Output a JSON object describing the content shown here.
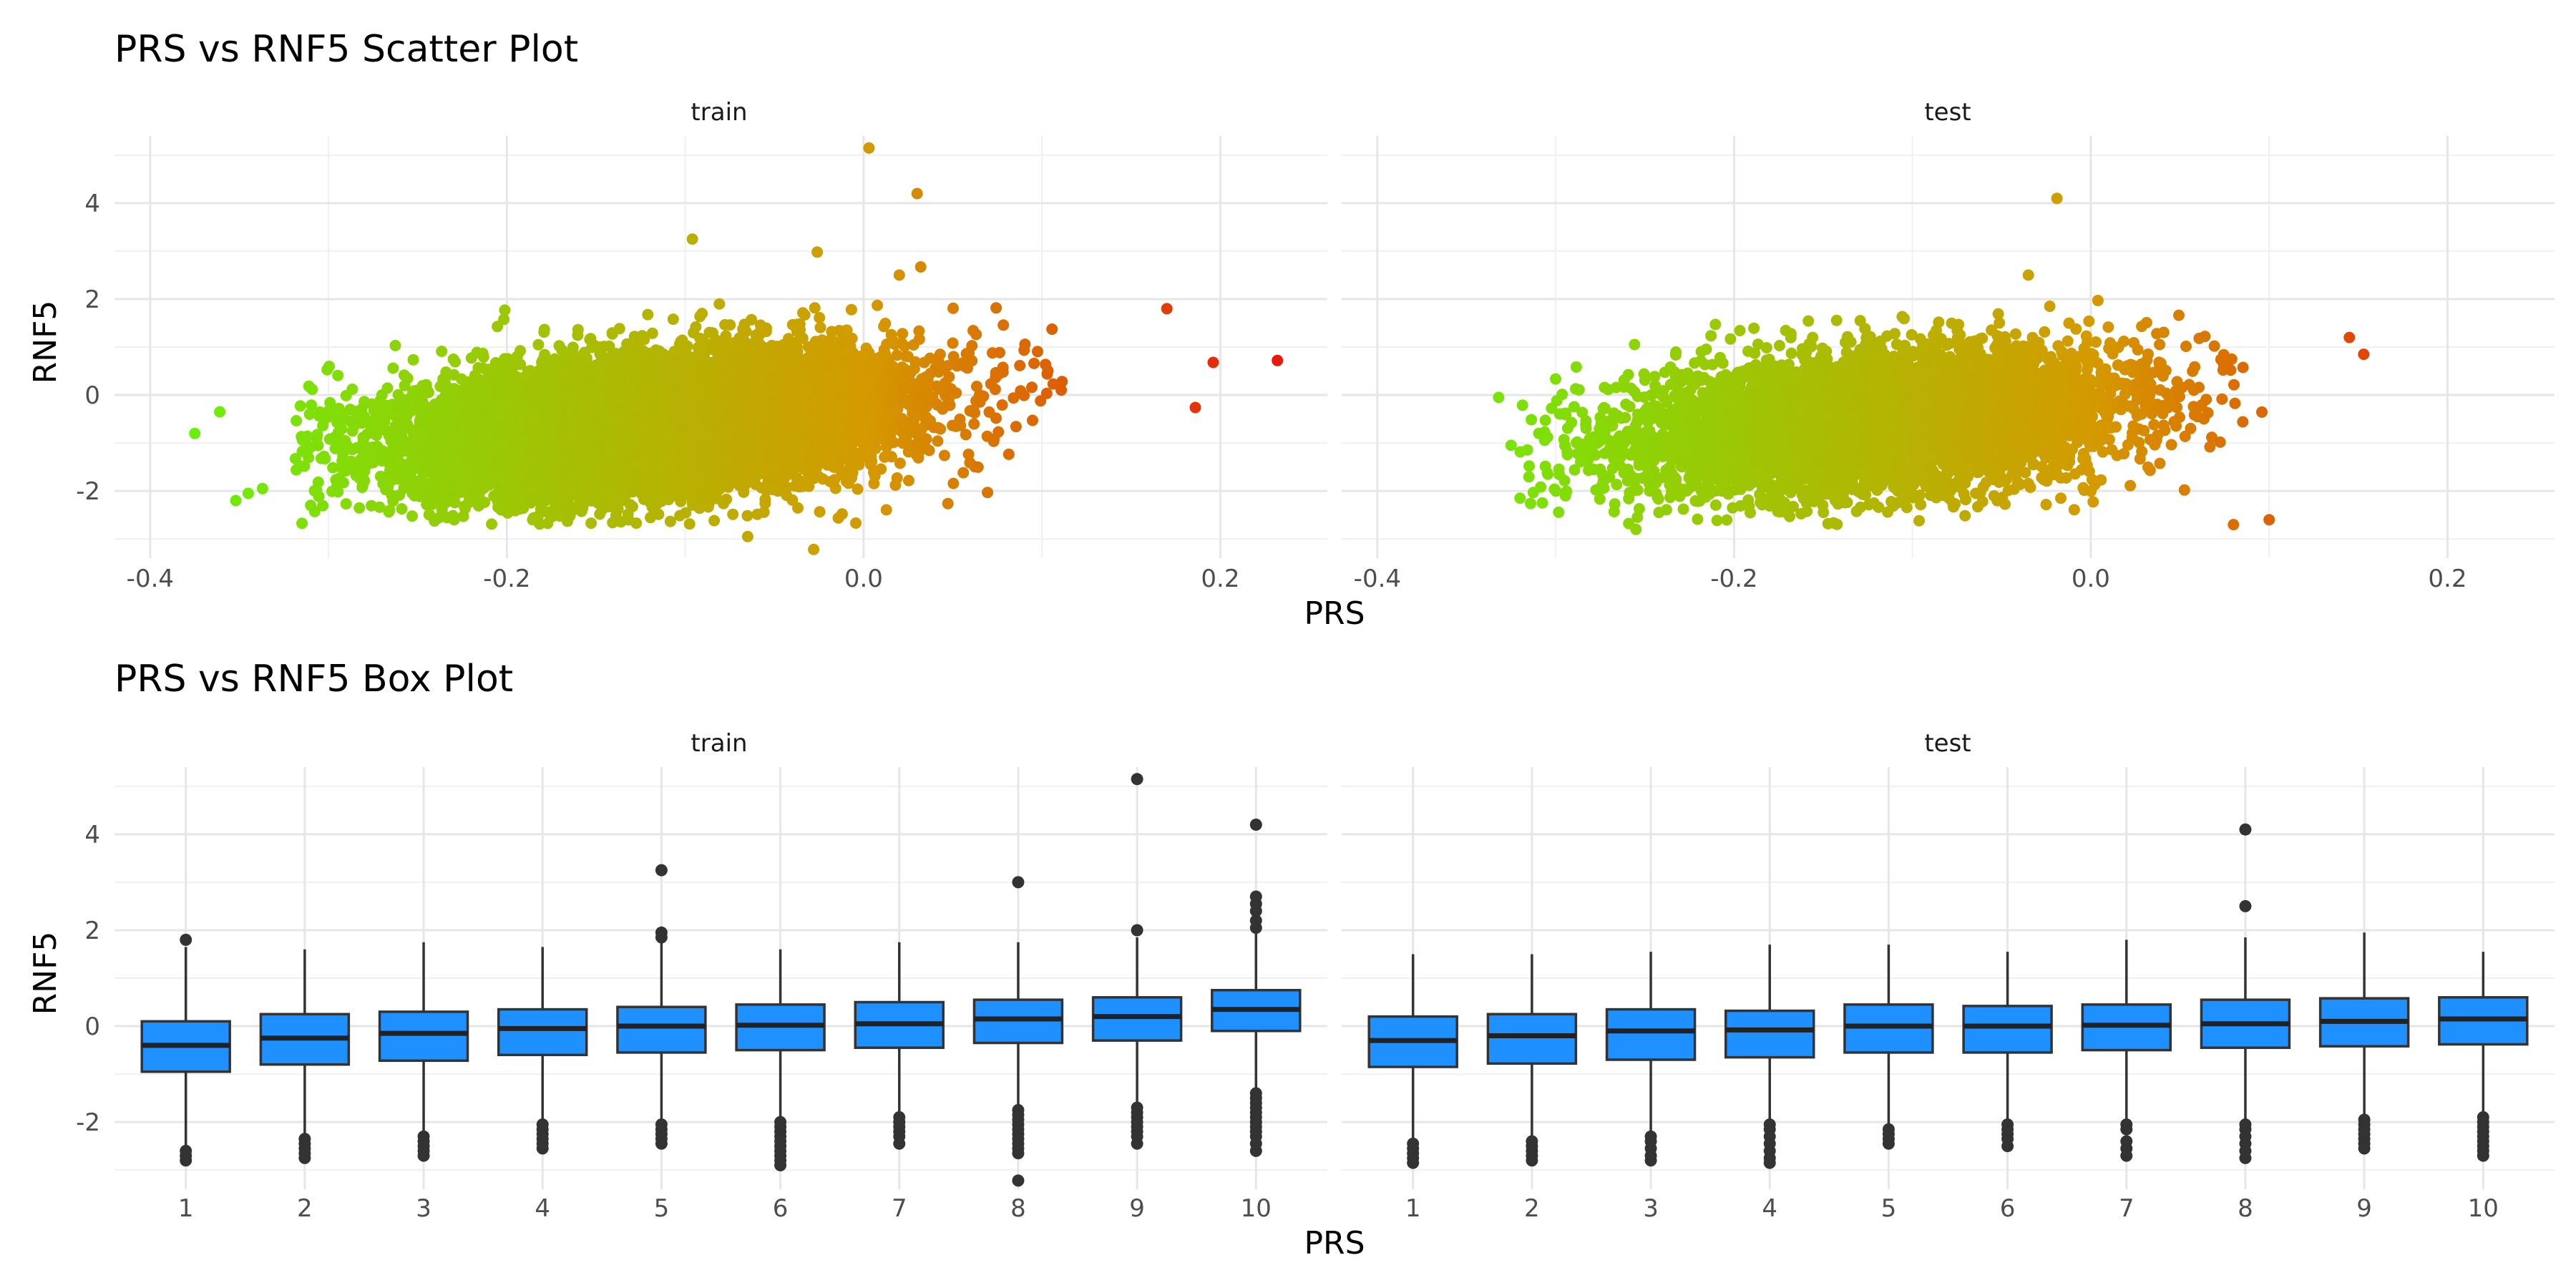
{
  "chart_data": [
    {
      "type": "scatter",
      "title": "PRS vs RNF5 Scatter Plot",
      "xlabel": "PRS",
      "ylabel": "RNF5",
      "xlim": [
        -0.42,
        0.26
      ],
      "ylim": [
        -3.4,
        5.4
      ],
      "x_ticks": [
        -0.4,
        -0.2,
        0.0,
        0.2
      ],
      "x_tick_labels": [
        "-0.4",
        "-0.2",
        "0.0",
        "0.2"
      ],
      "y_ticks": [
        -2,
        0,
        2,
        4
      ],
      "y_tick_labels": [
        "-2",
        "0",
        "2",
        "4"
      ],
      "grid": true,
      "color_scale": {
        "low": "#6BEF0A",
        "mid": "#D49A00",
        "high": "#E8180A"
      },
      "panels": [
        {
          "name": "train",
          "cloud": {
            "x_range": [
              -0.3,
              0.12
            ],
            "y_range": [
              -2.7,
              1.9
            ],
            "n_points": 9000
          },
          "outliers": [
            {
              "x": 0.003,
              "y": 5.15
            },
            {
              "x": 0.03,
              "y": 4.2
            },
            {
              "x": -0.096,
              "y": 3.25
            },
            {
              "x": -0.026,
              "y": 2.98
            },
            {
              "x": 0.032,
              "y": 2.67
            },
            {
              "x": 0.02,
              "y": 2.5
            },
            {
              "x": 0.232,
              "y": 0.72
            },
            {
              "x": 0.196,
              "y": 0.68
            },
            {
              "x": 0.186,
              "y": -0.26
            },
            {
              "x": 0.17,
              "y": 1.8
            },
            {
              "x": -0.375,
              "y": -0.8
            },
            {
              "x": -0.352,
              "y": -2.2
            },
            {
              "x": -0.345,
              "y": -2.05
            },
            {
              "x": -0.337,
              "y": -1.95
            },
            {
              "x": -0.361,
              "y": -0.35
            },
            {
              "x": -0.31,
              "y": -2.3
            },
            {
              "x": -0.028,
              "y": -3.22
            },
            {
              "x": -0.065,
              "y": -2.95
            }
          ]
        },
        {
          "name": "test",
          "cloud": {
            "x_range": [
              -0.3,
              0.12
            ],
            "y_range": [
              -2.7,
              1.7
            ],
            "n_points": 5500
          },
          "outliers": [
            {
              "x": -0.019,
              "y": 4.1
            },
            {
              "x": -0.035,
              "y": 2.5
            },
            {
              "x": -0.023,
              "y": 1.85
            },
            {
              "x": 0.004,
              "y": 1.97
            },
            {
              "x": -0.332,
              "y": -0.05
            },
            {
              "x": -0.32,
              "y": -2.15
            },
            {
              "x": -0.325,
              "y": -1.05
            },
            {
              "x": 0.153,
              "y": 0.85
            },
            {
              "x": 0.145,
              "y": 1.2
            },
            {
              "x": 0.1,
              "y": -2.6
            },
            {
              "x": 0.08,
              "y": -2.7
            },
            {
              "x": -0.255,
              "y": -2.8
            }
          ]
        }
      ]
    },
    {
      "type": "box",
      "title": "PRS vs RNF5 Box Plot",
      "xlabel": "PRS",
      "ylabel": "RNF5",
      "categories": [
        "1",
        "2",
        "3",
        "4",
        "5",
        "6",
        "7",
        "8",
        "9",
        "10"
      ],
      "ylim": [
        -3.4,
        5.4
      ],
      "y_ticks": [
        -2,
        0,
        2,
        4
      ],
      "y_tick_labels": [
        "-2",
        "0",
        "2",
        "4"
      ],
      "fill": "#1E90FF",
      "grid": true,
      "panels": [
        {
          "name": "train",
          "boxes": [
            {
              "q1": -0.95,
              "median": -0.4,
              "q3": 0.1,
              "low": -2.55,
              "high": 1.65,
              "outliers": [
                1.8,
                -2.6,
                -2.7,
                -2.8
              ]
            },
            {
              "q1": -0.8,
              "median": -0.25,
              "q3": 0.25,
              "low": -2.25,
              "high": 1.6,
              "outliers": [
                -2.35,
                -2.45,
                -2.55,
                -2.65,
                -2.75
              ]
            },
            {
              "q1": -0.72,
              "median": -0.15,
              "q3": 0.3,
              "low": -2.2,
              "high": 1.75,
              "outliers": [
                -2.3,
                -2.4,
                -2.5,
                -2.6,
                -2.7
              ]
            },
            {
              "q1": -0.6,
              "median": -0.05,
              "q3": 0.35,
              "low": -1.95,
              "high": 1.65,
              "outliers": [
                -2.05,
                -2.15,
                -2.25,
                -2.35,
                -2.45,
                -2.55
              ]
            },
            {
              "q1": -0.55,
              "median": 0.0,
              "q3": 0.4,
              "low": -1.95,
              "high": 1.75,
              "outliers": [
                3.25,
                1.85,
                1.95,
                -2.05,
                -2.15,
                -2.25,
                -2.35,
                -2.45
              ]
            },
            {
              "q1": -0.5,
              "median": 0.02,
              "q3": 0.45,
              "low": -1.9,
              "high": 1.6,
              "outliers": [
                -2.0,
                -2.1,
                -2.2,
                -2.3,
                -2.4,
                -2.5,
                -2.6,
                -2.7,
                -2.8,
                -2.9
              ]
            },
            {
              "q1": -0.45,
              "median": 0.05,
              "q3": 0.5,
              "low": -1.8,
              "high": 1.75,
              "outliers": [
                -1.9,
                -2.0,
                -2.1,
                -2.2,
                -2.3,
                -2.45
              ]
            },
            {
              "q1": -0.35,
              "median": 0.15,
              "q3": 0.55,
              "low": -1.65,
              "high": 1.75,
              "outliers": [
                3.0,
                -1.75,
                -1.85,
                -1.95,
                -2.05,
                -2.15,
                -2.25,
                -2.35,
                -2.45,
                -2.55,
                -2.65,
                -3.22
              ]
            },
            {
              "q1": -0.3,
              "median": 0.2,
              "q3": 0.6,
              "low": -1.6,
              "high": 1.85,
              "outliers": [
                5.15,
                2.0,
                -1.7,
                -1.8,
                -1.9,
                -2.0,
                -2.1,
                -2.2,
                -2.3,
                -2.45
              ]
            },
            {
              "q1": -0.1,
              "median": 0.35,
              "q3": 0.75,
              "low": -1.3,
              "high": 1.95,
              "outliers": [
                4.2,
                2.7,
                2.55,
                2.4,
                2.2,
                2.05,
                -1.4,
                -1.5,
                -1.6,
                -1.7,
                -1.8,
                -1.9,
                -2.0,
                -2.1,
                -2.2,
                -2.3,
                -2.45,
                -2.6
              ]
            }
          ]
        },
        {
          "name": "test",
          "boxes": [
            {
              "q1": -0.85,
              "median": -0.3,
              "q3": 0.2,
              "low": -2.35,
              "high": 1.5,
              "outliers": [
                -2.45,
                -2.55,
                -2.65,
                -2.75,
                -2.85
              ]
            },
            {
              "q1": -0.78,
              "median": -0.2,
              "q3": 0.25,
              "low": -2.3,
              "high": 1.5,
              "outliers": [
                -2.4,
                -2.5,
                -2.6,
                -2.7,
                -2.8
              ]
            },
            {
              "q1": -0.7,
              "median": -0.1,
              "q3": 0.35,
              "low": -2.2,
              "high": 1.55,
              "outliers": [
                -2.3,
                -2.4,
                -2.55,
                -2.7,
                -2.8
              ]
            },
            {
              "q1": -0.65,
              "median": -0.08,
              "q3": 0.32,
              "low": -1.95,
              "high": 1.7,
              "outliers": [
                -2.05,
                -2.15,
                -2.3,
                -2.45,
                -2.6,
                -2.75,
                -2.85
              ]
            },
            {
              "q1": -0.55,
              "median": 0.0,
              "q3": 0.45,
              "low": -2.05,
              "high": 1.7,
              "outliers": [
                -2.15,
                -2.25,
                -2.35,
                -2.45
              ]
            },
            {
              "q1": -0.55,
              "median": 0.0,
              "q3": 0.42,
              "low": -1.95,
              "high": 1.55,
              "outliers": [
                -2.05,
                -2.15,
                -2.25,
                -2.35,
                -2.5
              ]
            },
            {
              "q1": -0.5,
              "median": 0.02,
              "q3": 0.45,
              "low": -1.95,
              "high": 1.8,
              "outliers": [
                -2.05,
                -2.15,
                -2.4,
                -2.55,
                -2.7
              ]
            },
            {
              "q1": -0.45,
              "median": 0.05,
              "q3": 0.55,
              "low": -1.95,
              "high": 1.85,
              "outliers": [
                4.1,
                2.5,
                -2.05,
                -2.15,
                -2.3,
                -2.45,
                -2.6,
                -2.75
              ]
            },
            {
              "q1": -0.42,
              "median": 0.1,
              "q3": 0.58,
              "low": -1.85,
              "high": 1.95,
              "outliers": [
                -1.95,
                -2.05,
                -2.15,
                -2.25,
                -2.35,
                -2.45,
                -2.55
              ]
            },
            {
              "q1": -0.38,
              "median": 0.15,
              "q3": 0.6,
              "low": -1.8,
              "high": 1.55,
              "outliers": [
                -1.9,
                -2.0,
                -2.1,
                -2.2,
                -2.3,
                -2.4,
                -2.5,
                -2.6,
                -2.7
              ]
            }
          ]
        }
      ]
    }
  ]
}
